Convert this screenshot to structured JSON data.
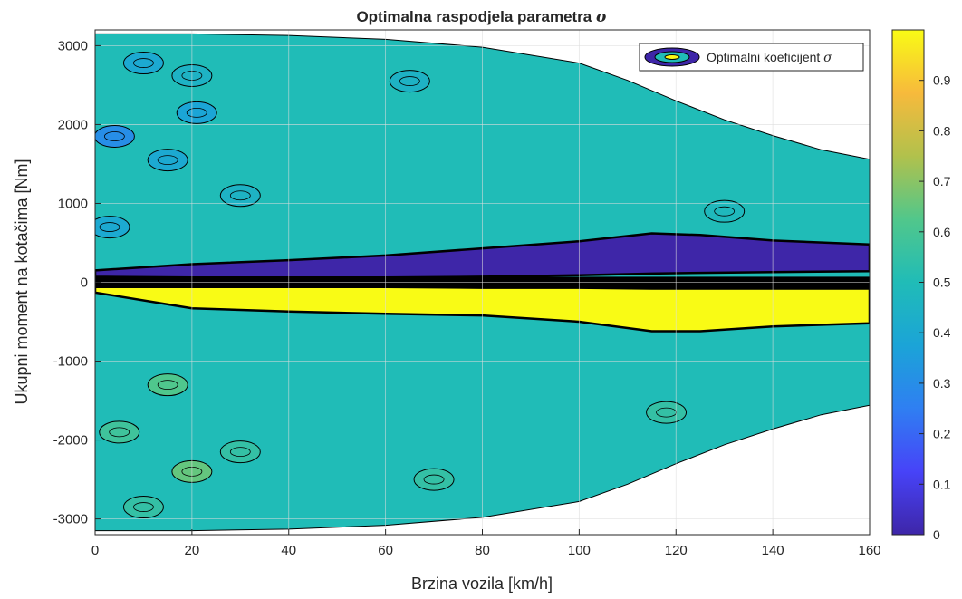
{
  "chart_data": {
    "type": "heatmap",
    "title": "Optimalna raspodjela parametra",
    "title_symbol": "σ",
    "xlabel": "Brzina vozila [km/h]",
    "ylabel": "Ukupni moment na kotačima [Nm]",
    "xlim": [
      0,
      160
    ],
    "ylim": [
      -3200,
      3200
    ],
    "x_ticks": [
      "0",
      "20",
      "40",
      "60",
      "80",
      "100",
      "120",
      "140",
      "160"
    ],
    "y_ticks": [
      "-3000",
      "-2000",
      "-1000",
      "0",
      "1000",
      "2000",
      "3000"
    ],
    "grid": true,
    "legend": {
      "label": "Optimalni koeficijent",
      "symbol": "σ",
      "position": "top-right"
    },
    "colorbar": {
      "clim": [
        0,
        1
      ],
      "ticks": [
        "0",
        "0.1",
        "0.2",
        "0.3",
        "0.4",
        "0.5",
        "0.6",
        "0.7",
        "0.8",
        "0.9"
      ],
      "colormap": "parula"
    },
    "background_value": 0.5,
    "envelope": {
      "speed": [
        0,
        20,
        40,
        60,
        80,
        100,
        110,
        120,
        130,
        140,
        150,
        160
      ],
      "torque_max": [
        3150,
        3150,
        3130,
        3080,
        2980,
        2780,
        2560,
        2300,
        2060,
        1860,
        1680,
        1560
      ],
      "torque_min": [
        -3150,
        -3150,
        -3130,
        -3080,
        -2980,
        -2780,
        -2560,
        -2300,
        -2060,
        -1860,
        -1680,
        -1560
      ]
    },
    "bands": [
      {
        "name": "low_sigma_band",
        "value": 0.0,
        "speed": [
          0,
          20,
          40,
          60,
          80,
          100,
          115,
          125,
          140,
          160
        ],
        "torque_low": [
          70,
          60,
          60,
          60,
          70,
          90,
          110,
          120,
          130,
          140
        ],
        "torque_high": [
          150,
          230,
          280,
          340,
          430,
          520,
          620,
          600,
          530,
          480
        ]
      },
      {
        "name": "high_sigma_band",
        "value": 1.0,
        "speed": [
          0,
          20,
          40,
          60,
          80,
          100,
          115,
          125,
          140,
          160
        ],
        "torque_low": [
          -130,
          -330,
          -370,
          -400,
          -420,
          -500,
          -620,
          -620,
          -560,
          -520
        ],
        "torque_high": [
          -60,
          -60,
          -60,
          -60,
          -70,
          -70,
          -80,
          -80,
          -80,
          -80
        ]
      }
    ],
    "patches": [
      {
        "speed": 10,
        "torque": 2780,
        "value": 0.4
      },
      {
        "speed": 4,
        "torque": 1850,
        "value": 0.3
      },
      {
        "speed": 21,
        "torque": 2150,
        "value": 0.38
      },
      {
        "speed": 15,
        "torque": 1550,
        "value": 0.4
      },
      {
        "speed": 20,
        "torque": 2620,
        "value": 0.45
      },
      {
        "speed": 30,
        "torque": 1100,
        "value": 0.45
      },
      {
        "speed": 65,
        "torque": 2550,
        "value": 0.45
      },
      {
        "speed": 3,
        "torque": 700,
        "value": 0.4
      },
      {
        "speed": 15,
        "torque": -1300,
        "value": 0.62
      },
      {
        "speed": 20,
        "torque": -2400,
        "value": 0.65
      },
      {
        "speed": 5,
        "torque": -1900,
        "value": 0.58
      },
      {
        "speed": 10,
        "torque": -2850,
        "value": 0.55
      },
      {
        "speed": 30,
        "torque": -2150,
        "value": 0.55
      },
      {
        "speed": 70,
        "torque": -2500,
        "value": 0.55
      },
      {
        "speed": 130,
        "torque": 900,
        "value": 0.48
      },
      {
        "speed": 118,
        "torque": -1650,
        "value": 0.55
      }
    ]
  }
}
